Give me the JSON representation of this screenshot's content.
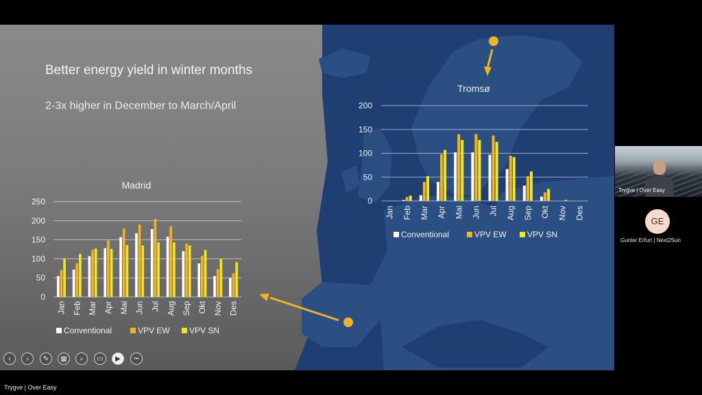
{
  "slide": {
    "title": "Better energy yield in winter months",
    "subtitle": "2-3x higher in December to March/April"
  },
  "colors": {
    "conventional": "#ffffff",
    "vpv_ew": "#f0b323",
    "vpv_sn": "#f2e61c",
    "sea": "#1f3f73",
    "land": "#2b4f82",
    "arrow": "#f0b323"
  },
  "chart_data": [
    {
      "type": "bar",
      "title": "Madrid",
      "categories": [
        "Jan",
        "Feb",
        "Mar",
        "Apr",
        "Mai",
        "Jun",
        "Jul",
        "Aug",
        "Sep",
        "Okt",
        "Nov",
        "Des"
      ],
      "series": [
        {
          "name": "Conventional",
          "values": [
            55,
            72,
            107,
            128,
            157,
            167,
            178,
            158,
            120,
            88,
            55,
            50
          ]
        },
        {
          "name": "VPV EW",
          "values": [
            71,
            88,
            124,
            148,
            180,
            190,
            205,
            185,
            140,
            108,
            73,
            62
          ]
        },
        {
          "name": "VPV SN",
          "values": [
            101,
            113,
            127,
            126,
            136,
            135,
            143,
            143,
            135,
            123,
            100,
            91
          ]
        }
      ],
      "yticks": [
        0,
        50,
        100,
        150,
        200,
        250
      ],
      "ylim": [
        0,
        250
      ],
      "grid": true,
      "legend": "bottom"
    },
    {
      "type": "bar",
      "title": "Tromsø",
      "categories": [
        "Jan",
        "Feb",
        "Mar",
        "Apr",
        "Mai",
        "Jun",
        "Jul",
        "Aug",
        "Sep",
        "Okt",
        "Nov",
        "Des"
      ],
      "series": [
        {
          "name": "Conventional",
          "values": [
            0,
            2,
            12,
            40,
            102,
            102,
            97,
            67,
            32,
            9,
            0,
            0
          ]
        },
        {
          "name": "VPV EW",
          "values": [
            0,
            8,
            40,
            98,
            140,
            140,
            137,
            95,
            52,
            18,
            0,
            0
          ]
        },
        {
          "name": "VPV SN",
          "values": [
            0,
            11,
            52,
            107,
            128,
            128,
            124,
            92,
            62,
            25,
            2,
            0
          ]
        }
      ],
      "yticks": [
        0,
        50,
        100,
        150,
        200
      ],
      "ylim": [
        0,
        200
      ],
      "grid": true,
      "legend": "bottom"
    }
  ],
  "toolbar": {
    "buttons": [
      {
        "name": "previous-slide-button",
        "icon": "‹"
      },
      {
        "name": "next-slide-button",
        "icon": "›"
      },
      {
        "name": "pen-tool-button",
        "icon": "✎"
      },
      {
        "name": "slide-sorter-button",
        "icon": "▦"
      },
      {
        "name": "zoom-button",
        "icon": "⌕"
      },
      {
        "name": "subtitles-button",
        "icon": "▭"
      },
      {
        "name": "camera-button",
        "icon": "▶"
      },
      {
        "name": "more-options-button",
        "icon": "•••"
      }
    ]
  },
  "meeting": {
    "presenter_label": "Trygve | Over Easy",
    "video_tile_name": "Trygve | Over Easy",
    "participant_initials": "GE",
    "participant_name": "Gunter Erfurt | Next2Sun"
  }
}
